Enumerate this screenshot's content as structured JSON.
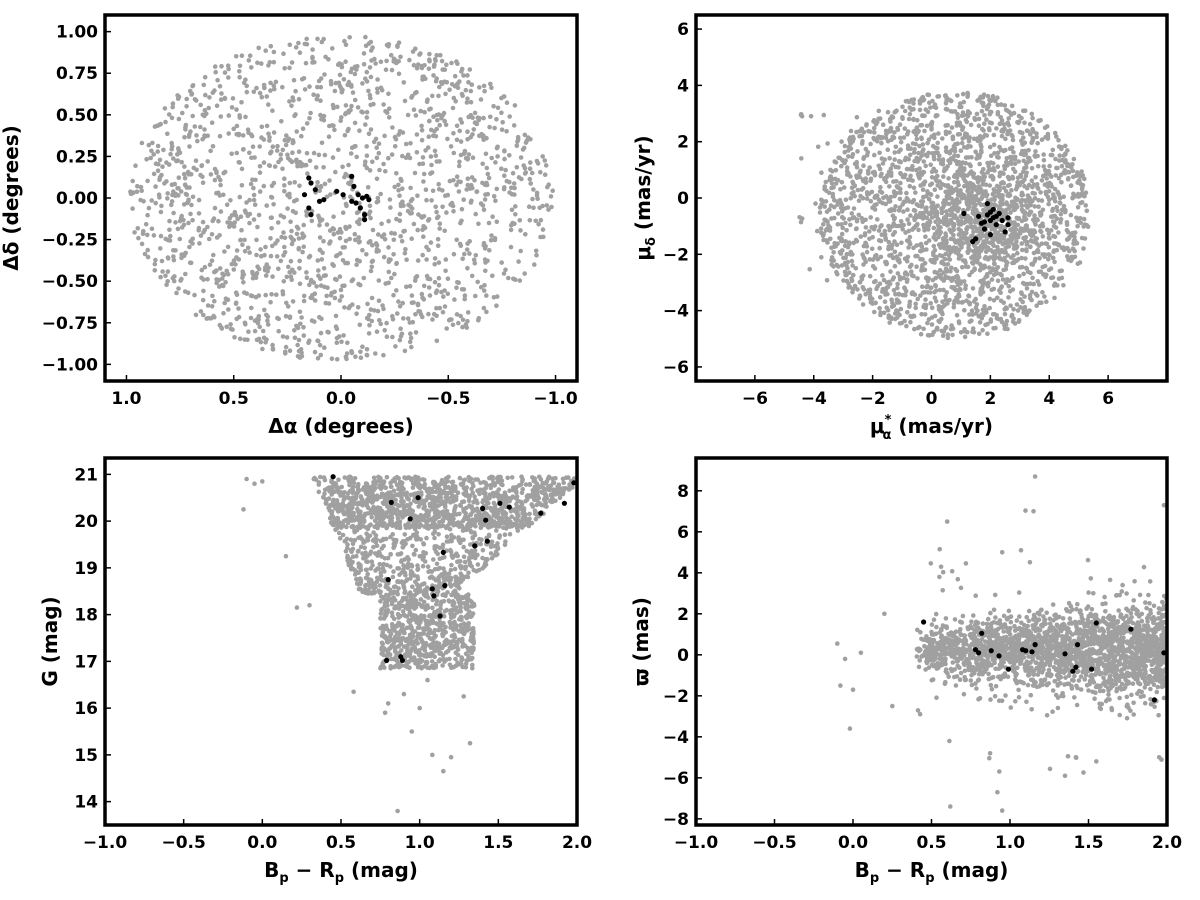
{
  "colors": {
    "field": "#a0a0a0",
    "member": "#000000",
    "frame": "#000000"
  },
  "chart_data": [
    {
      "type": "scatter",
      "title": "",
      "xlabel": "Δα (degrees)",
      "ylabel": "Δδ (degrees)",
      "xlim": [
        1.1,
        -1.1
      ],
      "ylim": [
        -1.1,
        1.1
      ],
      "x_inverted": true,
      "xticks": [
        1.0,
        0.5,
        0.0,
        -0.5,
        -1.0
      ],
      "xtick_labels": [
        "1.0",
        "0.5",
        "0.0",
        "−0.5",
        "−1.0"
      ],
      "yticks": [
        1.0,
        0.75,
        0.5,
        0.25,
        0.0,
        -0.25,
        -0.5,
        -0.75,
        -1.0
      ],
      "ytick_labels": [
        "1.00",
        "0.75",
        "0.50",
        "0.25",
        "0.00",
        "−0.25",
        "−0.50",
        "−0.75",
        "−1.00"
      ],
      "field": {
        "shape": "ellipse",
        "center": [
          0.0,
          0.0
        ],
        "semi_x": 0.99,
        "semi_y": 0.98,
        "count": 1700
      },
      "members": [
        {
          "x": 0.17,
          "y": 0.02
        },
        {
          "x": 0.15,
          "y": 0.12
        },
        {
          "x": 0.14,
          "y": 0.09
        },
        {
          "x": 0.15,
          "y": -0.06
        },
        {
          "x": 0.14,
          "y": -0.1
        },
        {
          "x": 0.12,
          "y": 0.05
        },
        {
          "x": 0.1,
          "y": -0.02
        },
        {
          "x": 0.08,
          "y": -0.01
        },
        {
          "x": 0.02,
          "y": 0.04
        },
        {
          "x": -0.01,
          "y": 0.02
        },
        {
          "x": -0.05,
          "y": 0.13
        },
        {
          "x": -0.06,
          "y": 0.07
        },
        {
          "x": -0.05,
          "y": -0.02
        },
        {
          "x": -0.07,
          "y": -0.03
        },
        {
          "x": -0.08,
          "y": 0.02
        },
        {
          "x": -0.09,
          "y": -0.06
        },
        {
          "x": -0.11,
          "y": -0.1
        },
        {
          "x": -0.11,
          "y": -0.13
        },
        {
          "x": -0.12,
          "y": 0.01
        },
        {
          "x": -0.13,
          "y": -0.01
        },
        {
          "x": -0.1,
          "y": 0.0
        }
      ]
    },
    {
      "type": "scatter",
      "title": "",
      "xlabel": "μα* (mas/yr)",
      "xlabel_parts": {
        "base": "μ",
        "sub": "α",
        "sup": "*",
        "unit": " (mas/yr)"
      },
      "ylabel": "μδ (mas/yr)",
      "ylabel_parts": {
        "base": "μ",
        "sub": "δ",
        "unit": " (mas/yr)"
      },
      "xlim": [
        -8,
        8
      ],
      "ylim": [
        -6.5,
        6.5
      ],
      "x_inverted": false,
      "xticks": [
        -6,
        -4,
        -2,
        0,
        2,
        4,
        6
      ],
      "xtick_labels": [
        "−6",
        "−4",
        "−2",
        "0",
        "2",
        "4",
        "6"
      ],
      "yticks": [
        6,
        4,
        2,
        0,
        -2,
        -4,
        -6
      ],
      "ytick_labels": [
        "6",
        "4",
        "2",
        "0",
        "−2",
        "−4",
        "−6"
      ],
      "field": {
        "shape": "disk",
        "center": [
          0.8,
          -0.6
        ],
        "radius_x": 4.6,
        "radius_y": 4.4,
        "count": 2000,
        "core_center": [
          1.5,
          -0.8
        ],
        "core_sd": [
          1.0,
          1.0
        ],
        "core_count": 500
      },
      "members": [
        {
          "x": 1.1,
          "y": -0.55
        },
        {
          "x": 1.4,
          "y": -1.55
        },
        {
          "x": 1.5,
          "y": -1.45
        },
        {
          "x": 1.6,
          "y": -0.65
        },
        {
          "x": 1.7,
          "y": -0.9
        },
        {
          "x": 1.8,
          "y": -1.1
        },
        {
          "x": 1.9,
          "y": -0.6
        },
        {
          "x": 1.9,
          "y": -0.2
        },
        {
          "x": 2.0,
          "y": -0.8
        },
        {
          "x": 2.0,
          "y": -1.3
        },
        {
          "x": 2.1,
          "y": -0.4
        },
        {
          "x": 2.1,
          "y": -0.7
        },
        {
          "x": 2.2,
          "y": -0.95
        },
        {
          "x": 2.3,
          "y": -0.55
        },
        {
          "x": 2.4,
          "y": -0.8
        },
        {
          "x": 2.5,
          "y": -1.2
        },
        {
          "x": 2.6,
          "y": -0.7
        },
        {
          "x": 2.6,
          "y": -0.95
        },
        {
          "x": 2.2,
          "y": -0.65
        },
        {
          "x": 1.8,
          "y": -0.85
        },
        {
          "x": 2.0,
          "y": -0.5
        }
      ]
    },
    {
      "type": "scatter",
      "title": "",
      "xlabel": "Bp − Rp (mag)",
      "xlabel_parts": {
        "a": "B",
        "a_sub": "p",
        "op": " − ",
        "b": "R",
        "b_sub": "p",
        "unit": " (mag)"
      },
      "ylabel": "G (mag)",
      "xlim": [
        -1.0,
        2.0
      ],
      "ylim": [
        13.5,
        21.35
      ],
      "y_inverted": false,
      "xticks": [
        -1.0,
        -0.5,
        0.0,
        0.5,
        1.0,
        1.5,
        2.0
      ],
      "xtick_labels": [
        "−1.0",
        "−0.5",
        "0.0",
        "0.5",
        "1.0",
        "1.5",
        "2.0"
      ],
      "yticks": [
        21,
        20,
        19,
        18,
        17,
        16,
        15,
        14
      ],
      "ytick_labels": [
        "21",
        "20",
        "19",
        "18",
        "17",
        "16",
        "15",
        "14"
      ],
      "field": {
        "shape": "cmd",
        "g_max": 20.95,
        "count": 2300
      },
      "members": [
        {
          "x": 0.45,
          "y": 20.95
        },
        {
          "x": 0.8,
          "y": 18.75
        },
        {
          "x": 0.79,
          "y": 17.02
        },
        {
          "x": 0.82,
          "y": 20.4
        },
        {
          "x": 0.88,
          "y": 17.1
        },
        {
          "x": 0.89,
          "y": 17.02
        },
        {
          "x": 0.94,
          "y": 20.05
        },
        {
          "x": 0.99,
          "y": 20.5
        },
        {
          "x": 1.08,
          "y": 18.55
        },
        {
          "x": 1.09,
          "y": 18.4
        },
        {
          "x": 1.13,
          "y": 17.97
        },
        {
          "x": 1.15,
          "y": 19.33
        },
        {
          "x": 1.16,
          "y": 18.62
        },
        {
          "x": 1.35,
          "y": 19.47
        },
        {
          "x": 1.4,
          "y": 20.27
        },
        {
          "x": 1.42,
          "y": 20.02
        },
        {
          "x": 1.43,
          "y": 19.57
        },
        {
          "x": 1.51,
          "y": 20.38
        },
        {
          "x": 1.57,
          "y": 20.3
        },
        {
          "x": 1.77,
          "y": 20.17
        },
        {
          "x": 1.92,
          "y": 20.38
        },
        {
          "x": 1.98,
          "y": 20.82
        }
      ]
    },
    {
      "type": "scatter",
      "title": "",
      "xlabel": "Bp − Rp (mag)",
      "xlabel_parts": {
        "a": "B",
        "a_sub": "p",
        "op": " − ",
        "b": "R",
        "b_sub": "p",
        "unit": " (mag)"
      },
      "ylabel": "ϖ (mas)",
      "xlim": [
        -1.0,
        2.0
      ],
      "ylim": [
        -8.3,
        9.6
      ],
      "xticks": [
        -1.0,
        -0.5,
        0.0,
        0.5,
        1.0,
        1.5,
        2.0
      ],
      "xtick_labels": [
        "−1.0",
        "−0.5",
        "0.0",
        "0.5",
        "1.0",
        "1.5",
        "2.0"
      ],
      "yticks": [
        8,
        6,
        4,
        2,
        0,
        -2,
        -4,
        -6,
        -8
      ],
      "ytick_labels": [
        "8",
        "6",
        "4",
        "2",
        "0",
        "−2",
        "−4",
        "−6",
        "−8"
      ],
      "field": {
        "shape": "band",
        "center": 0.2,
        "count": 2300
      },
      "members": [
        {
          "x": 0.45,
          "y": 1.6
        },
        {
          "x": 0.78,
          "y": 0.25
        },
        {
          "x": 0.8,
          "y": 0.1
        },
        {
          "x": 0.82,
          "y": 1.05
        },
        {
          "x": 0.88,
          "y": 0.2
        },
        {
          "x": 0.93,
          "y": -0.05
        },
        {
          "x": 0.99,
          "y": -0.7
        },
        {
          "x": 1.08,
          "y": 0.25
        },
        {
          "x": 1.1,
          "y": 0.2
        },
        {
          "x": 1.14,
          "y": 0.15
        },
        {
          "x": 1.16,
          "y": 0.5
        },
        {
          "x": 1.35,
          "y": 0.05
        },
        {
          "x": 1.4,
          "y": -0.8
        },
        {
          "x": 1.42,
          "y": -0.6
        },
        {
          "x": 1.43,
          "y": 0.5
        },
        {
          "x": 1.52,
          "y": -0.7
        },
        {
          "x": 1.55,
          "y": 1.55
        },
        {
          "x": 1.77,
          "y": 1.25
        },
        {
          "x": 1.92,
          "y": -2.2
        },
        {
          "x": 1.98,
          "y": 0.1
        }
      ]
    }
  ]
}
